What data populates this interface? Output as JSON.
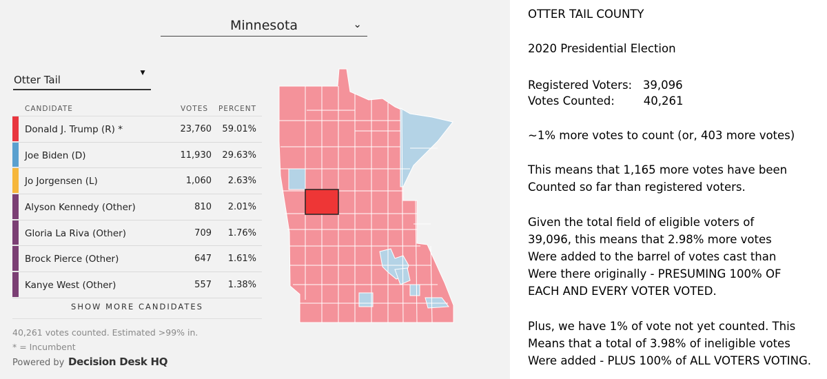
{
  "widget": {
    "state_select": "Minnesota",
    "county_select": "Otter Tail",
    "headers": {
      "candidate": "CANDIDATE",
      "votes": "VOTES",
      "percent": "PERCENT"
    },
    "candidates": [
      {
        "name": "Donald J. Trump (R) *",
        "votes": "23,760",
        "percent": "59.01%",
        "color": "#e8363f"
      },
      {
        "name": "Joe Biden (D)",
        "votes": "11,930",
        "percent": "29.63%",
        "color": "#5aa0cf"
      },
      {
        "name": "Jo Jorgensen (L)",
        "votes": "1,060",
        "percent": "2.63%",
        "color": "#f6b73c"
      },
      {
        "name": "Alyson Kennedy (Other)",
        "votes": "810",
        "percent": "2.01%",
        "color": "#7b3f74"
      },
      {
        "name": "Gloria La Riva (Other)",
        "votes": "709",
        "percent": "1.76%",
        "color": "#7b3f74"
      },
      {
        "name": "Brock Pierce (Other)",
        "votes": "647",
        "percent": "1.61%",
        "color": "#7b3f74"
      },
      {
        "name": "Kanye West (Other)",
        "votes": "557",
        "percent": "1.38%",
        "color": "#7b3f74"
      }
    ],
    "show_more": "SHOW MORE CANDIDATES",
    "votes_counted": "40,261 votes counted. Estimated >99% in.",
    "incumbent_note": "* = Incumbent",
    "powered_by": "Powered by",
    "ddhq_logo": "Decision Desk HQ",
    "map_colors": {
      "rep": "#f4929a",
      "dem": "#b4d3e6",
      "selected": "#ee3636",
      "border": "#ffffff"
    }
  },
  "notes": {
    "title": "OTTER TAIL COUNTY",
    "election": "2020 Presidential Election",
    "registered": "Registered Voters:   39,096",
    "counted": "Votes Counted:        40,261",
    "remaining": "~1% more votes to count (or, 403 more votes)",
    "p1": "This means that 1,165 more votes have been",
    "p2": "Counted so far than registered voters.",
    "p3": "Given the total field of eligible voters of",
    "p4": "39,096, this means that 2.98% more votes",
    "p5": "Were added to the barrel of votes cast than",
    "p6": "Were there originally - PRESUMING 100% OF",
    "p7": "EACH AND EVERY VOTER VOTED.",
    "p8": "Plus, we have 1% of vote not yet counted.  This",
    "p9": "Means that a total of 3.98% of ineligible votes",
    "p10": "Were added - PLUS 100% of ALL VOTERS VOTING."
  }
}
